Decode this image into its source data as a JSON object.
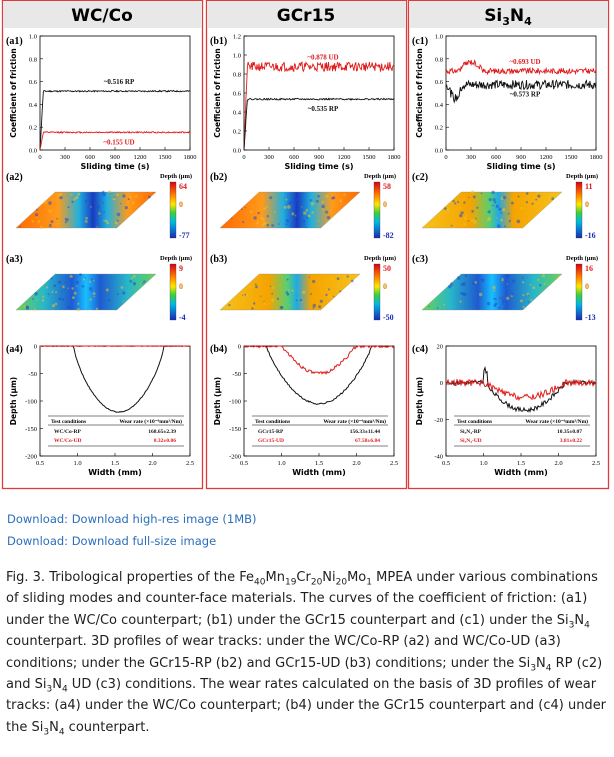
{
  "columns": [
    {
      "header": "WC/Co",
      "friction": {
        "label": "(a1)",
        "rp_label": "~0.516 RP",
        "ud_label": "~0.155 UD",
        "rp_mean": 0.516,
        "ud_mean": 0.155,
        "ymax": 1.0,
        "yticks": [
          "0.0",
          "0.2",
          "0.4",
          "0.6",
          "0.8",
          "1.0"
        ]
      },
      "map_top": {
        "label": "(a2)",
        "unit": "Depth (μm)",
        "max": "64",
        "mid": "0",
        "min": "-77"
      },
      "map_bottom": {
        "label": "(a3)",
        "unit": "Depth (μm)",
        "max": "9",
        "mid": "0",
        "min": "-4"
      },
      "profile": {
        "label": "(a4)",
        "yticks": [
          "0",
          "-50",
          "-100",
          "-150",
          "-200"
        ],
        "table_header_left": "Test conditions",
        "table_header_right": "Wear rate (×10⁻⁶mm³/Nm)",
        "rp_condition": "WC/Co-RP",
        "rp_rate": "168.65±2.39",
        "ud_condition": "WC/Co-UD",
        "ud_rate": "0.32±0.06"
      }
    },
    {
      "header": "GCr15",
      "friction": {
        "label": "(b1)",
        "rp_label": "~0.535 RP",
        "ud_label": "~0.878 UD",
        "rp_mean": 0.535,
        "ud_mean": 0.878,
        "ymax": 1.2,
        "yticks": [
          "0.0",
          "0.2",
          "0.4",
          "0.6",
          "0.8",
          "1.0",
          "1.2"
        ]
      },
      "map_top": {
        "label": "(b2)",
        "unit": "Depth (μm)",
        "max": "58",
        "mid": "0",
        "min": "-82"
      },
      "map_bottom": {
        "label": "(b3)",
        "unit": "Depth (μm)",
        "max": "50",
        "mid": "0",
        "min": "-50"
      },
      "profile": {
        "label": "(b4)",
        "yticks": [
          "0",
          "-50",
          "-100",
          "-150",
          "-200"
        ],
        "table_header_left": "Test conditions",
        "table_header_right": "Wear rate (×10⁻⁶mm³/Nm)",
        "rp_condition": "GCr15-RP",
        "rp_rate": "156.33±11.44",
        "ud_condition": "GCr15-UD",
        "ud_rate": "67.58±6.84"
      }
    },
    {
      "header": "Si3N4",
      "friction": {
        "label": "(c1)",
        "rp_label": "~0.573 RP",
        "ud_label": "~0.693 UD",
        "rp_mean": 0.573,
        "ud_mean": 0.693,
        "ymax": 1.0,
        "yticks": [
          "0.0",
          "0.2",
          "0.4",
          "0.6",
          "0.8",
          "1.0"
        ]
      },
      "map_top": {
        "label": "(c2)",
        "unit": "Depth (μm)",
        "max": "11",
        "mid": "0",
        "min": "-16"
      },
      "map_bottom": {
        "label": "(c3)",
        "unit": "Depth (μm)",
        "max": "16",
        "mid": "0",
        "min": "-13"
      },
      "profile": {
        "label": "(c4)",
        "yticks": [
          "20",
          "0",
          "-20",
          "-40"
        ],
        "table_header_left": "Test conditions",
        "table_header_right": "Wear rate (×10⁻⁶mm³/Nm)",
        "rp_condition": "Si₃N₄-RP",
        "rp_rate": "10.35±0.07",
        "ud_condition": "Si₃N₄-UD",
        "ud_rate": "3.81±0.22"
      }
    }
  ],
  "friction_axis": {
    "xticks": [
      "0",
      "300",
      "600",
      "900",
      "1200",
      "1500",
      "1800"
    ],
    "xlabel": "Sliding time (s)",
    "ylabel": "Coefficient of friction"
  },
  "profile_axis": {
    "xticks": [
      "0.5",
      "1.0",
      "1.5",
      "2.0",
      "2.5"
    ],
    "xlabel": "Width (mm)",
    "ylabel": "Depth (μm)"
  },
  "links": {
    "high_res": "Download: Download high-res image (1MB)",
    "full_size": "Download: Download full-size image"
  },
  "caption": {
    "p1": "Fig. 3. Tribological properties of the Fe",
    "s1": "40",
    "p2": "Mn",
    "s2": "19",
    "p3": "Cr",
    "s3": "20",
    "p4": "Ni",
    "s4": "20",
    "p5": "Mo",
    "s5": "1",
    "p6": " MPEA under various combinations of sliding modes and counter-face materials. The curves of the coefficient of friction: (a1) under the WC/Co counterpart; (b1) under the GCr15 counterpart and (c1) under the Si",
    "s6": "3",
    "p7": "N",
    "s7": "4",
    "p8": " counterpart. 3D profiles of wear tracks: under the WC/Co-RP (a2) and WC/Co-UD (a3) conditions; under the GCr15-RP (b2) and GCr15-UD (b3) conditions; under the Si",
    "s8": "3",
    "p9": "N",
    "s9": "4",
    "p10": " RP (c2) and Si",
    "s10": "3",
    "p11": "N",
    "s11": "4",
    "p12": " UD (c3) conditions. The wear rates calculated on the basis of 3D profiles of wear tracks: (a4) under the WC/Co counterpart; (b4) under the GCr15 counterpart and (c4) under the Si",
    "s12": "3",
    "p13": "N",
    "s13": "4",
    "p14": " counterpart."
  },
  "colors": {
    "frame": "#e03a3a",
    "header_bg": "#e8e8e8",
    "rp": "#111111",
    "ud": "#e01b1b"
  }
}
